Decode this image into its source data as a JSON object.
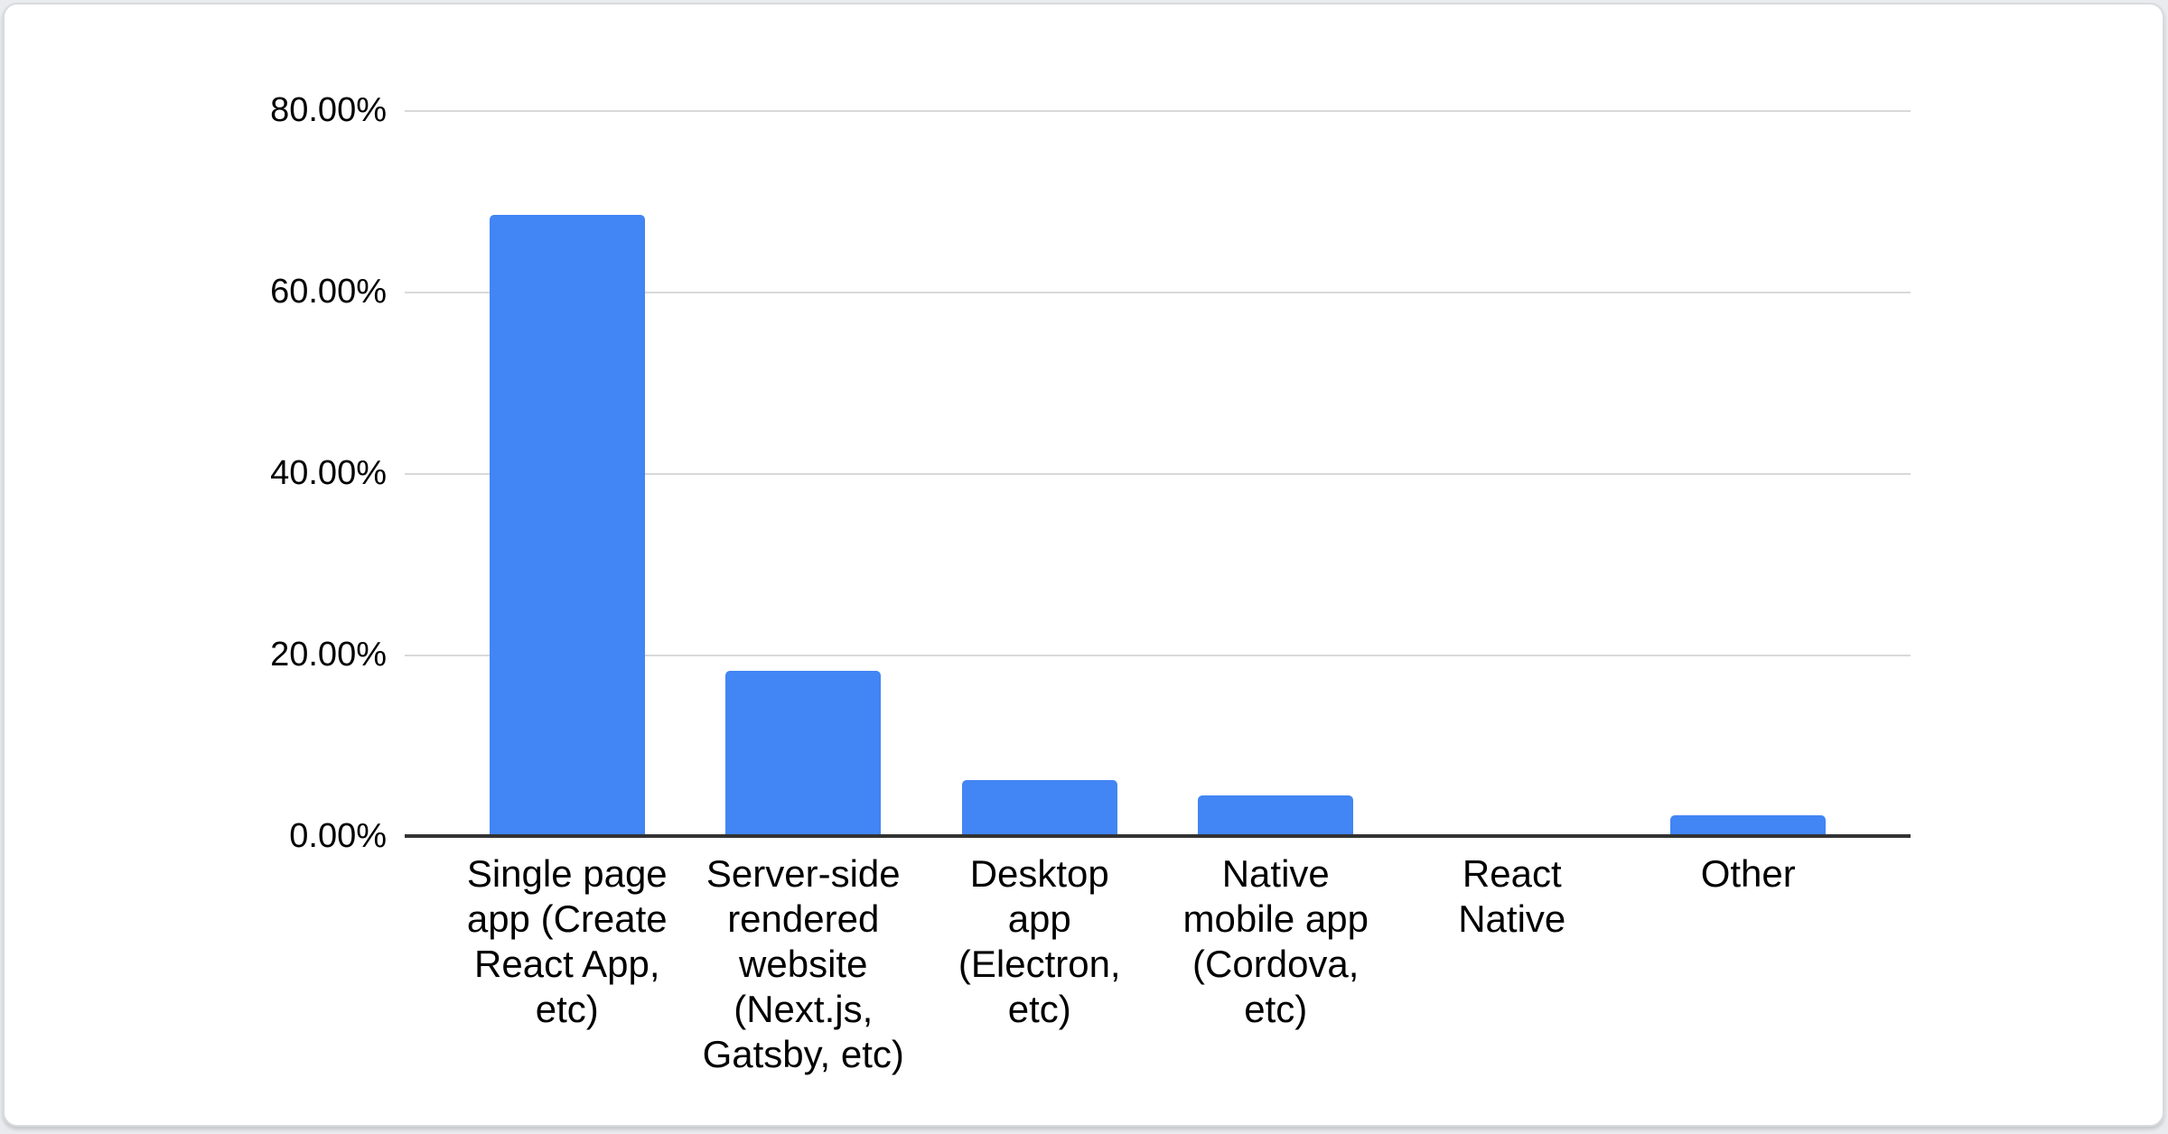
{
  "chart_data": {
    "type": "bar",
    "title": "",
    "xlabel": "",
    "ylabel": "",
    "legend": "none",
    "grid": true,
    "ylim": [
      0,
      80
    ],
    "y_ticks": [
      "80.00%",
      "60.00%",
      "40.00%",
      "20.00%",
      "0.00%"
    ],
    "categories": [
      "Single page app (Create React App, etc)",
      "Server-side rendered website (Next.js, Gatsby, etc)",
      "Desktop app (Electron, etc)",
      "Native mobile app (Cordova, etc)",
      "React Native",
      "Other"
    ],
    "x_tick_display": [
      "Single page\napp (Create\nReact App,\netc)",
      "Server-side\nrendered\nwebsite\n(Next.js,\nGatsby, etc)",
      "Desktop\napp\n(Electron,\netc)",
      "Native\nmobile app\n(Cordova,\netc)",
      "React\nNative",
      "Other"
    ],
    "values": [
      68.5,
      18.2,
      6.2,
      4.5,
      0,
      2.3
    ],
    "value_format": "percent",
    "series_color": "#4285f4",
    "gridline_color": "#d9d9d9",
    "baseline_color": "#333333"
  }
}
